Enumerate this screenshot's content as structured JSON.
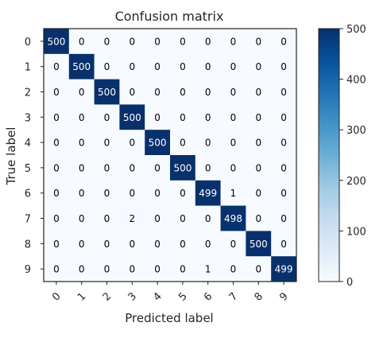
{
  "chart_data": {
    "type": "heatmap",
    "title": "Confusion matrix",
    "xlabel": "Predicted label",
    "ylabel": "True label",
    "x_categories": [
      "0",
      "1",
      "2",
      "3",
      "4",
      "5",
      "6",
      "7",
      "8",
      "9"
    ],
    "y_categories": [
      "0",
      "1",
      "2",
      "3",
      "4",
      "5",
      "6",
      "7",
      "8",
      "9"
    ],
    "matrix": [
      [
        500,
        0,
        0,
        0,
        0,
        0,
        0,
        0,
        0,
        0
      ],
      [
        0,
        500,
        0,
        0,
        0,
        0,
        0,
        0,
        0,
        0
      ],
      [
        0,
        0,
        500,
        0,
        0,
        0,
        0,
        0,
        0,
        0
      ],
      [
        0,
        0,
        0,
        500,
        0,
        0,
        0,
        0,
        0,
        0
      ],
      [
        0,
        0,
        0,
        0,
        500,
        0,
        0,
        0,
        0,
        0
      ],
      [
        0,
        0,
        0,
        0,
        0,
        500,
        0,
        0,
        0,
        0
      ],
      [
        0,
        0,
        0,
        0,
        0,
        0,
        499,
        1,
        0,
        0
      ],
      [
        0,
        0,
        0,
        2,
        0,
        0,
        0,
        498,
        0,
        0
      ],
      [
        0,
        0,
        0,
        0,
        0,
        0,
        0,
        0,
        500,
        0
      ],
      [
        0,
        0,
        0,
        0,
        0,
        0,
        1,
        0,
        0,
        499
      ]
    ],
    "colormap": "Blues",
    "vmin": 0,
    "vmax": 500,
    "colorbar_ticks": [
      0,
      100,
      200,
      300,
      400,
      500
    ],
    "low_color": "#f7fbff",
    "high_color": "#08306b",
    "text_on_dark": "#ffffff",
    "text_on_light": "#000000",
    "grid": false
  }
}
